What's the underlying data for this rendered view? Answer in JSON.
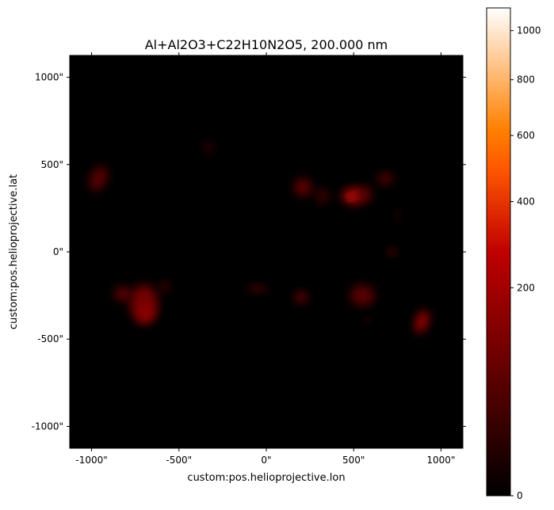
{
  "chart_data": {
    "type": "heatmap",
    "title": "Al+Al2O3+C22H10N2O5, 200.000 nm",
    "xlabel": "custom:pos.helioprojective.lon",
    "ylabel": "custom:pos.helioprojective.lat",
    "xlim": [
      -1125,
      1125
    ],
    "ylim": [
      -1125,
      1125
    ],
    "x_ticks": [
      {
        "value": -1000,
        "label": "-1000\""
      },
      {
        "value": -500,
        "label": "-500\""
      },
      {
        "value": 0,
        "label": "0\""
      },
      {
        "value": 500,
        "label": "500\""
      },
      {
        "value": 1000,
        "label": "1000\""
      }
    ],
    "y_ticks": [
      {
        "value": 1000,
        "label": "1000\""
      },
      {
        "value": 500,
        "label": "500\""
      },
      {
        "value": 0,
        "label": "0\""
      },
      {
        "value": -500,
        "label": "-500\""
      },
      {
        "value": -1000,
        "label": "-1000\""
      }
    ],
    "colorbar": {
      "colormap": "gist_heat",
      "scale": "sqrt",
      "range": [
        0,
        1100
      ],
      "ticks": [
        {
          "value": 0,
          "label": "0"
        },
        {
          "value": 200,
          "label": "200"
        },
        {
          "value": 400,
          "label": "400"
        },
        {
          "value": 600,
          "label": "600"
        },
        {
          "value": 800,
          "label": "800"
        },
        {
          "value": 1000,
          "label": "1000"
        }
      ]
    },
    "background_value": 0,
    "features": [
      {
        "x": 500,
        "y": 320,
        "rx": 25,
        "ry": 14,
        "value": 1000,
        "angle": -20
      },
      {
        "x": 500,
        "y": 320,
        "rx": 65,
        "ry": 45,
        "value": 220,
        "angle": 0
      },
      {
        "x": 560,
        "y": 330,
        "rx": 45,
        "ry": 40,
        "value": 60,
        "angle": 0
      },
      {
        "x": 210,
        "y": 370,
        "rx": 50,
        "ry": 50,
        "value": 70,
        "angle": 0
      },
      {
        "x": 320,
        "y": 320,
        "rx": 40,
        "ry": 40,
        "value": 25,
        "angle": 0
      },
      {
        "x": 680,
        "y": 420,
        "rx": 45,
        "ry": 30,
        "value": 60,
        "angle": 0
      },
      {
        "x": 720,
        "y": 0,
        "rx": 22,
        "ry": 18,
        "value": 120,
        "angle": 0
      },
      {
        "x": 750,
        "y": 210,
        "rx": 12,
        "ry": 20,
        "value": 70,
        "angle": 0
      },
      {
        "x": -960,
        "y": 420,
        "rx": 45,
        "ry": 75,
        "value": 60,
        "angle": 25
      },
      {
        "x": -700,
        "y": -300,
        "rx": 80,
        "ry": 110,
        "value": 100,
        "angle": 0
      },
      {
        "x": -690,
        "y": -350,
        "rx": 40,
        "ry": 50,
        "value": 150,
        "angle": 0
      },
      {
        "x": -820,
        "y": -240,
        "rx": 50,
        "ry": 40,
        "value": 70,
        "angle": 0
      },
      {
        "x": -580,
        "y": -200,
        "rx": 25,
        "ry": 25,
        "value": 60,
        "angle": 0
      },
      {
        "x": 200,
        "y": -260,
        "rx": 35,
        "ry": 30,
        "value": 90,
        "angle": 0
      },
      {
        "x": -50,
        "y": -210,
        "rx": 55,
        "ry": 20,
        "value": 40,
        "angle": 0
      },
      {
        "x": 550,
        "y": -250,
        "rx": 70,
        "ry": 60,
        "value": 60,
        "angle": 0
      },
      {
        "x": 580,
        "y": -390,
        "rx": 15,
        "ry": 15,
        "value": 50,
        "angle": 0
      },
      {
        "x": 890,
        "y": -400,
        "rx": 35,
        "ry": 65,
        "value": 180,
        "angle": 20
      },
      {
        "x": -330,
        "y": 600,
        "rx": 30,
        "ry": 30,
        "value": 18,
        "angle": 0
      }
    ]
  }
}
